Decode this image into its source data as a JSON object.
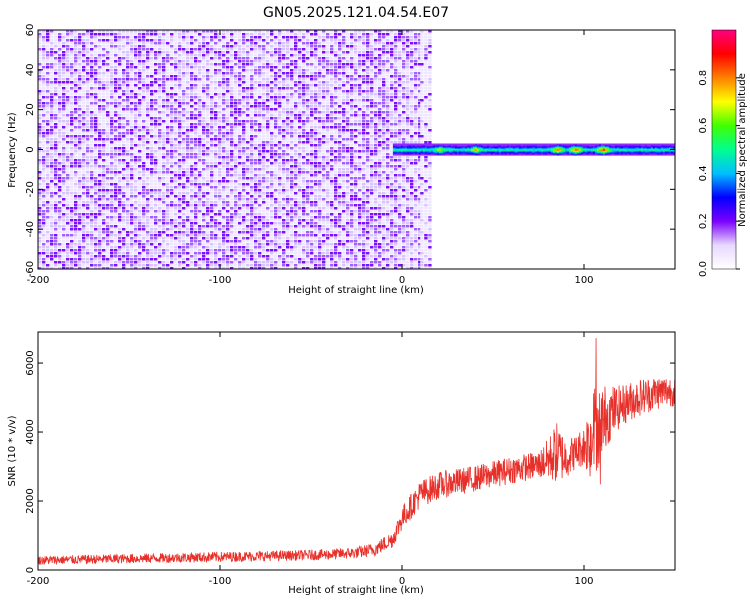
{
  "title": "GN05.2025.121.04.54.E07",
  "chart_data": [
    {
      "type": "heatmap",
      "xlabel": "Height of straight line (km)",
      "ylabel": "Frequency (Hz)",
      "xlim": [
        -200,
        150
      ],
      "ylim": [
        -60,
        60
      ],
      "xticks": [
        -200,
        -100,
        0,
        100
      ],
      "yticks": [
        -60,
        -40,
        -20,
        0,
        20,
        40,
        60
      ],
      "colorbar": {
        "label": "Normalized spectral amplitude",
        "range": [
          0,
          1
        ],
        "ticks": [
          0.0,
          0.2,
          0.4,
          0.6,
          0.8
        ],
        "tick_labels": [
          "0.0",
          "0.2",
          "0.4",
          "0.6",
          "0.8"
        ],
        "colormap": [
          "#ffffff",
          "#e8d8ff",
          "#7a00ff",
          "#0000ff",
          "#00bfff",
          "#00ff90",
          "#40ff00",
          "#ffff00",
          "#ff8000",
          "#ff0000",
          "#ff0080"
        ]
      },
      "regions": [
        {
          "x": [
            -200,
            10
          ],
          "y": [
            -60,
            60
          ],
          "level": 0.12,
          "texture": "speckle"
        },
        {
          "x": [
            10,
            15
          ],
          "y": [
            -60,
            60
          ],
          "level": 0.05,
          "texture": "speckle"
        },
        {
          "x": [
            -5,
            150
          ],
          "y": [
            -3,
            3
          ],
          "level": 0.5,
          "texture": "band"
        }
      ],
      "band_peaks": [
        {
          "x": -12,
          "y": 0,
          "level": 0.2
        },
        {
          "x": -6,
          "y": 0,
          "level": 0.25
        },
        {
          "x": 0,
          "y": 0,
          "level": 0.3
        },
        {
          "x": 20,
          "y": 0,
          "level": 0.75
        },
        {
          "x": 40,
          "y": 0,
          "level": 0.8
        },
        {
          "x": 85,
          "y": 0,
          "level": 0.85
        },
        {
          "x": 95,
          "y": 0,
          "level": 0.9
        },
        {
          "x": 110,
          "y": 0,
          "level": 0.95
        }
      ]
    },
    {
      "type": "line",
      "xlabel": "Height of straight line (km)",
      "ylabel": "SNR (10 * v/v)",
      "xlim": [
        -200,
        150
      ],
      "ylim": [
        0,
        6900
      ],
      "xticks": [
        -200,
        -100,
        0,
        100
      ],
      "yticks": [
        0,
        2000,
        4000,
        6000
      ],
      "color": "#e8302a",
      "series": [
        {
          "x": [
            -200,
            -150,
            -100,
            -60,
            -40,
            -25,
            -15,
            -5,
            0,
            10,
            20,
            40,
            60,
            75,
            80,
            85,
            90,
            95,
            100,
            105,
            110,
            120,
            130,
            140,
            150
          ],
          "y": [
            280,
            330,
            380,
            420,
            450,
            500,
            600,
            900,
            1500,
            2200,
            2450,
            2650,
            2900,
            3050,
            3200,
            3400,
            3250,
            3400,
            3600,
            3900,
            4400,
            4750,
            5000,
            5150,
            5200
          ],
          "noise": [
            130,
            140,
            150,
            150,
            160,
            170,
            200,
            250,
            350,
            400,
            400,
            380,
            400,
            400,
            600,
            900,
            600,
            500,
            600,
            1500,
            1000,
            600,
            550,
            500,
            450
          ]
        }
      ]
    }
  ]
}
